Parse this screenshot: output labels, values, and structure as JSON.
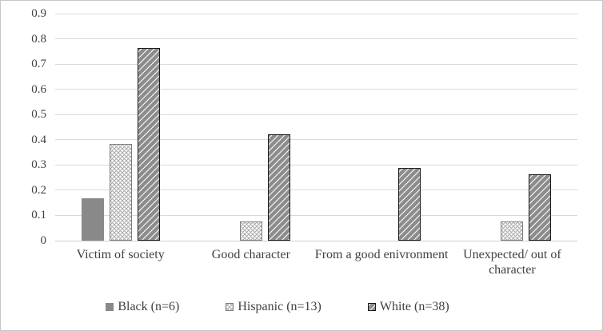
{
  "chart_data": {
    "type": "bar",
    "title": "",
    "categories": [
      "Victim of society",
      "Good character",
      "From a good enivronment",
      "Unexpected/ out of character"
    ],
    "series": [
      {
        "key": "black",
        "name": "Black (n=6)",
        "pattern": "solid",
        "values": [
          0.167,
          0,
          0,
          0
        ]
      },
      {
        "key": "hispanic",
        "name": "Hispanic (n=13)",
        "pattern": "crosshatch",
        "values": [
          0.385,
          0.077,
          0,
          0.077
        ]
      },
      {
        "key": "white",
        "name": "White (n=38)",
        "pattern": "stripe",
        "values": [
          0.763,
          0.421,
          0.289,
          0.263
        ]
      }
    ],
    "xlabel": "",
    "ylabel": "",
    "ylim": [
      0,
      0.9
    ],
    "yticks": [
      0,
      0.1,
      0.2,
      0.3,
      0.4,
      0.5,
      0.6,
      0.7,
      0.8,
      0.9
    ],
    "ytick_labels": [
      "0",
      "0.1",
      "0.2",
      "0.3",
      "0.4",
      "0.5",
      "0.6",
      "0.7",
      "0.8",
      "0.9"
    ],
    "grid": true,
    "legend_position": "bottom",
    "colors": {
      "solid": "#898989",
      "stripe": "#8c8c8c",
      "stripe_border": "#1a1a1a",
      "crosshatch": "#ababab",
      "crosshatch_border": "#7f7f7f",
      "gridline": "#d9d9d9",
      "axis_line": "#cfcfcf",
      "text": "#404040",
      "figure_border": "#c8c8c8",
      "background": "#ffffff"
    }
  }
}
